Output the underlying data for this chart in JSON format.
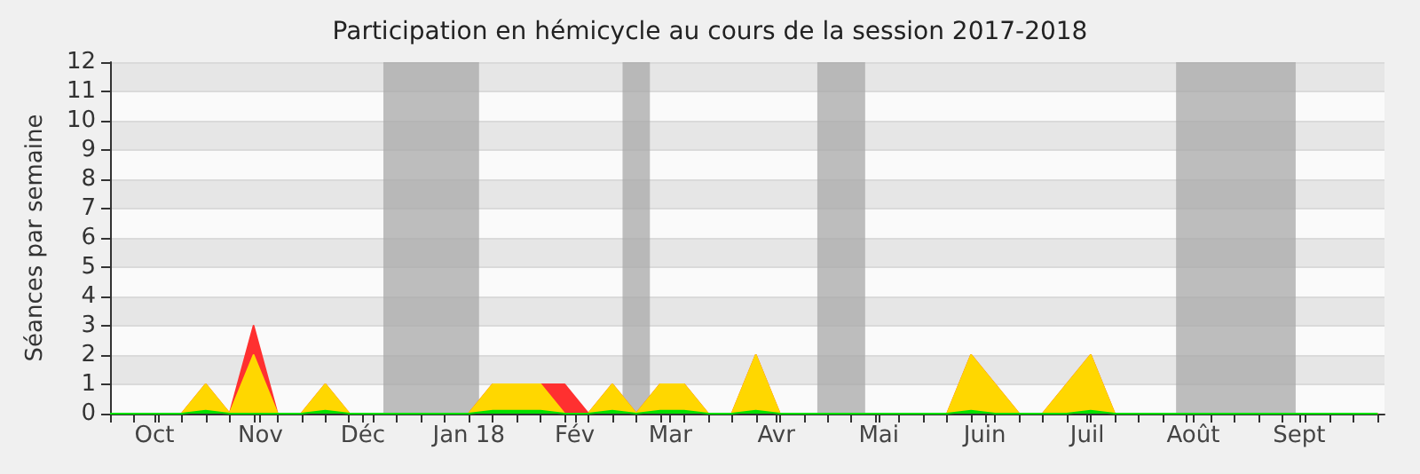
{
  "chart_data": {
    "type": "area",
    "title": "Participation en hémicycle au cours de la session 2017-2018",
    "ylabel": "Séances par semaine",
    "x": [
      "2017-09-18",
      "2017-09-25",
      "2017-10-02",
      "2017-10-09",
      "2017-10-16",
      "2017-10-23",
      "2017-10-30",
      "2017-11-06",
      "2017-11-13",
      "2017-11-20",
      "2017-11-27",
      "2017-12-04",
      "2017-12-11",
      "2017-12-18",
      "2017-12-25",
      "2018-01-01",
      "2018-01-08",
      "2018-01-15",
      "2018-01-22",
      "2018-01-29",
      "2018-02-05",
      "2018-02-12",
      "2018-02-19",
      "2018-02-26",
      "2018-03-05",
      "2018-03-12",
      "2018-03-19",
      "2018-03-26",
      "2018-04-02",
      "2018-04-09",
      "2018-04-16",
      "2018-04-23",
      "2018-04-30",
      "2018-05-07",
      "2018-05-14",
      "2018-05-21",
      "2018-05-28",
      "2018-06-04",
      "2018-06-11",
      "2018-06-18",
      "2018-06-25",
      "2018-07-02",
      "2018-07-09",
      "2018-07-16",
      "2018-07-23",
      "2018-07-30",
      "2018-08-06",
      "2018-08-13",
      "2018-08-20",
      "2018-08-27",
      "2018-09-03",
      "2018-09-10",
      "2018-09-17",
      "2018-09-24"
    ],
    "series": [
      {
        "color": "#ff3030",
        "values": [
          0,
          0,
          0,
          0,
          1,
          0,
          3,
          0,
          0,
          1,
          0,
          0,
          0,
          0,
          0,
          0,
          1,
          1,
          1,
          1,
          0,
          1,
          0,
          1,
          1,
          0,
          0,
          2,
          0,
          0,
          0,
          0,
          0,
          0,
          0,
          0,
          2,
          1,
          0,
          0,
          1,
          2,
          0,
          0,
          0,
          0,
          0,
          0,
          0,
          0,
          0,
          0,
          0,
          0
        ]
      },
      {
        "color": "#ffd700",
        "values": [
          0,
          0,
          0,
          0,
          1,
          0,
          2,
          0,
          0,
          1,
          0,
          0,
          0,
          0,
          0,
          0,
          1,
          1,
          1,
          0,
          0,
          1,
          0,
          1,
          1,
          0,
          0,
          2,
          0,
          0,
          0,
          0,
          0,
          0,
          0,
          0,
          2,
          1,
          0,
          0,
          1,
          2,
          0,
          0,
          0,
          0,
          0,
          0,
          0,
          0,
          0,
          0,
          0,
          0
        ]
      },
      {
        "color": "#00e000",
        "values": [
          0,
          0,
          0,
          0,
          0.1,
          0,
          0,
          0,
          0,
          0.1,
          0,
          0,
          0,
          0,
          0,
          0,
          0.1,
          0.1,
          0.1,
          0,
          0,
          0.1,
          0,
          0.1,
          0.1,
          0,
          0,
          0.1,
          0,
          0,
          0,
          0,
          0,
          0,
          0,
          0,
          0.1,
          0,
          0,
          0,
          0,
          0.1,
          0,
          0,
          0,
          0,
          0,
          0,
          0,
          0,
          0,
          0,
          0,
          0
        ]
      }
    ],
    "xlim": [
      "2017-09-18",
      "2018-09-26"
    ],
    "xticks": [
      {
        "value": "2017-09-18",
        "label": null
      },
      {
        "value": "2017-09-25",
        "label": null
      },
      {
        "value": "2017-10-01",
        "label": "Oct"
      },
      {
        "value": "2017-10-02",
        "label": null
      },
      {
        "value": "2017-10-09",
        "label": null
      },
      {
        "value": "2017-10-16",
        "label": null
      },
      {
        "value": "2017-10-23",
        "label": null
      },
      {
        "value": "2017-10-30",
        "label": null
      },
      {
        "value": "2017-11-01",
        "label": "Nov"
      },
      {
        "value": "2017-11-06",
        "label": null
      },
      {
        "value": "2017-11-13",
        "label": null
      },
      {
        "value": "2017-11-20",
        "label": null
      },
      {
        "value": "2017-11-27",
        "label": null
      },
      {
        "value": "2017-12-01",
        "label": "Déc"
      },
      {
        "value": "2017-12-04",
        "label": null
      },
      {
        "value": "2017-12-11",
        "label": null
      },
      {
        "value": "2017-12-18",
        "label": null
      },
      {
        "value": "2017-12-25",
        "label": null
      },
      {
        "value": "2018-01-01",
        "label": "Jan 18"
      },
      {
        "value": "2018-01-08",
        "label": null
      },
      {
        "value": "2018-01-15",
        "label": null
      },
      {
        "value": "2018-01-22",
        "label": null
      },
      {
        "value": "2018-01-29",
        "label": null
      },
      {
        "value": "2018-02-01",
        "label": "Fév"
      },
      {
        "value": "2018-02-05",
        "label": null
      },
      {
        "value": "2018-02-12",
        "label": null
      },
      {
        "value": "2018-02-19",
        "label": null
      },
      {
        "value": "2018-02-26",
        "label": null
      },
      {
        "value": "2018-03-01",
        "label": "Mar"
      },
      {
        "value": "2018-03-05",
        "label": null
      },
      {
        "value": "2018-03-12",
        "label": null
      },
      {
        "value": "2018-03-19",
        "label": null
      },
      {
        "value": "2018-03-26",
        "label": null
      },
      {
        "value": "2018-04-01",
        "label": "Avr"
      },
      {
        "value": "2018-04-02",
        "label": null
      },
      {
        "value": "2018-04-09",
        "label": null
      },
      {
        "value": "2018-04-16",
        "label": null
      },
      {
        "value": "2018-04-23",
        "label": null
      },
      {
        "value": "2018-04-30",
        "label": null
      },
      {
        "value": "2018-05-01",
        "label": "Mai"
      },
      {
        "value": "2018-05-07",
        "label": null
      },
      {
        "value": "2018-05-14",
        "label": null
      },
      {
        "value": "2018-05-21",
        "label": null
      },
      {
        "value": "2018-05-28",
        "label": null
      },
      {
        "value": "2018-06-01",
        "label": "Juin"
      },
      {
        "value": "2018-06-04",
        "label": null
      },
      {
        "value": "2018-06-11",
        "label": null
      },
      {
        "value": "2018-06-18",
        "label": null
      },
      {
        "value": "2018-06-25",
        "label": null
      },
      {
        "value": "2018-07-01",
        "label": "Juil"
      },
      {
        "value": "2018-07-02",
        "label": null
      },
      {
        "value": "2018-07-09",
        "label": null
      },
      {
        "value": "2018-07-16",
        "label": null
      },
      {
        "value": "2018-07-23",
        "label": null
      },
      {
        "value": "2018-07-30",
        "label": null
      },
      {
        "value": "2018-08-01",
        "label": "Août"
      },
      {
        "value": "2018-08-06",
        "label": null
      },
      {
        "value": "2018-08-13",
        "label": null
      },
      {
        "value": "2018-08-20",
        "label": null
      },
      {
        "value": "2018-08-27",
        "label": null
      },
      {
        "value": "2018-09-01",
        "label": "Sept"
      },
      {
        "value": "2018-09-03",
        "label": null
      },
      {
        "value": "2018-09-10",
        "label": null
      },
      {
        "value": "2018-09-17",
        "label": null
      },
      {
        "value": "2018-09-24",
        "label": null
      }
    ],
    "ylim": [
      0,
      12
    ],
    "yticks": [
      0,
      1,
      2,
      3,
      4,
      5,
      6,
      7,
      8,
      9,
      10,
      11,
      12
    ],
    "bands": [
      {
        "axis": "x",
        "from": "2017-12-07",
        "to": "2018-01-04",
        "color": "#a8a8a8"
      },
      {
        "axis": "x",
        "from": "2018-02-15",
        "to": "2018-02-23",
        "color": "#a8a8a8"
      },
      {
        "axis": "x",
        "from": "2018-04-13",
        "to": "2018-04-27",
        "color": "#a8a8a8"
      },
      {
        "axis": "x",
        "from": "2018-07-27",
        "to": "2018-08-31",
        "color": "#a8a8a8"
      }
    ],
    "grid": "y",
    "marker": "none"
  }
}
